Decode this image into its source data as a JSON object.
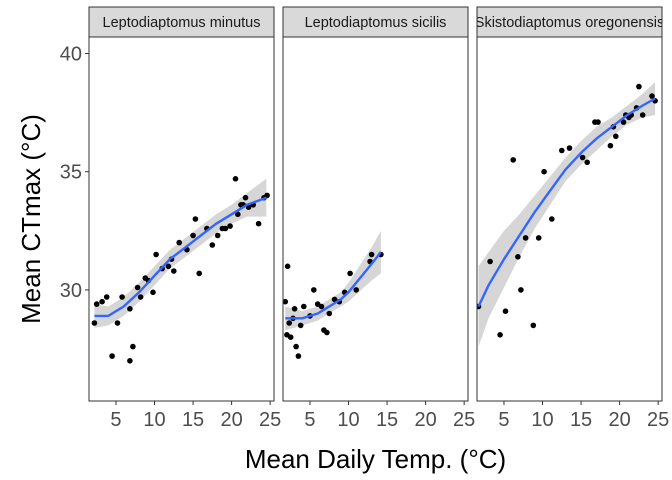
{
  "chart_data": {
    "type": "scatter",
    "facet_layout": "1 row, 3 columns, shared y axis",
    "xlabel": "Mean Daily Temp. (°C)",
    "ylabel": "Mean CTmax (°C)",
    "xlim": [
      1.5,
      25.5
    ],
    "ylim": [
      25.3,
      40.7
    ],
    "xticks": [
      5,
      10,
      15,
      20,
      25
    ],
    "xtick_labels": [
      "5",
      "10",
      "15",
      "20",
      "25"
    ],
    "yticks": [
      30,
      35,
      40
    ],
    "ytick_labels": [
      "30",
      "35",
      "40"
    ],
    "grid": false,
    "smoother": "loess fit with confidence band",
    "colors": {
      "points": "#000000",
      "fit_line": "#3366FF",
      "ribbon": "#999999",
      "strip_fill": "#D9D9D9",
      "panel_border": "#333333",
      "tick_text": "#4D4D4D"
    },
    "panels": [
      {
        "strip": "Leptodiaptomus minutus",
        "points": [
          [
            2.2,
            28.6
          ],
          [
            2.5,
            29.4
          ],
          [
            3.2,
            29.5
          ],
          [
            3.8,
            29.7
          ],
          [
            4.5,
            27.2
          ],
          [
            5.2,
            28.6
          ],
          [
            5.8,
            29.7
          ],
          [
            6.8,
            27.0
          ],
          [
            6.8,
            29.2
          ],
          [
            7.2,
            27.6
          ],
          [
            7.8,
            30.1
          ],
          [
            8.2,
            29.7
          ],
          [
            8.8,
            30.5
          ],
          [
            9.2,
            30.4
          ],
          [
            9.8,
            29.9
          ],
          [
            10.2,
            31.5
          ],
          [
            11.0,
            30.9
          ],
          [
            11.8,
            31.0
          ],
          [
            12.2,
            31.3
          ],
          [
            12.5,
            30.8
          ],
          [
            13.2,
            32.0
          ],
          [
            14.2,
            31.7
          ],
          [
            15.0,
            32.3
          ],
          [
            15.3,
            33.0
          ],
          [
            15.8,
            30.7
          ],
          [
            16.8,
            32.6
          ],
          [
            17.5,
            31.9
          ],
          [
            18.2,
            32.3
          ],
          [
            18.8,
            32.6
          ],
          [
            19.2,
            32.6
          ],
          [
            19.8,
            32.7
          ],
          [
            20.5,
            34.7
          ],
          [
            20.8,
            33.2
          ],
          [
            21.2,
            33.6
          ],
          [
            21.5,
            33.6
          ],
          [
            21.8,
            33.9
          ],
          [
            22.2,
            33.5
          ],
          [
            22.8,
            33.6
          ],
          [
            23.5,
            32.8
          ],
          [
            24.2,
            33.9
          ],
          [
            24.6,
            34.0
          ]
        ],
        "fit": [
          [
            2.2,
            28.9
          ],
          [
            4,
            28.9
          ],
          [
            6,
            29.3
          ],
          [
            8,
            29.9
          ],
          [
            10,
            30.6
          ],
          [
            12,
            31.3
          ],
          [
            14,
            31.8
          ],
          [
            16,
            32.3
          ],
          [
            18,
            32.8
          ],
          [
            20,
            33.2
          ],
          [
            22,
            33.6
          ],
          [
            24.5,
            33.9
          ]
        ],
        "fit_band": [
          [
            2.2,
            28.4,
            29.4
          ],
          [
            4,
            28.5,
            29.3
          ],
          [
            6,
            28.9,
            29.7
          ],
          [
            8,
            29.5,
            30.3
          ],
          [
            10,
            30.2,
            31.0
          ],
          [
            12,
            30.9,
            31.7
          ],
          [
            14,
            31.4,
            32.2
          ],
          [
            16,
            31.9,
            32.7
          ],
          [
            18,
            32.4,
            33.2
          ],
          [
            20,
            32.8,
            33.6
          ],
          [
            22,
            33.1,
            34.1
          ],
          [
            24.5,
            33.1,
            34.7
          ]
        ]
      },
      {
        "strip": "Leptodiaptomus sicilis",
        "points": [
          [
            1.8,
            29.5
          ],
          [
            2.0,
            28.1
          ],
          [
            2.1,
            31.0
          ],
          [
            2.3,
            28.6
          ],
          [
            2.5,
            28.0
          ],
          [
            2.8,
            28.8
          ],
          [
            3.0,
            29.2
          ],
          [
            3.2,
            27.6
          ],
          [
            3.5,
            27.2
          ],
          [
            3.8,
            28.5
          ],
          [
            4.2,
            29.3
          ],
          [
            5.0,
            28.9
          ],
          [
            5.5,
            30.0
          ],
          [
            6.0,
            29.4
          ],
          [
            6.5,
            29.3
          ],
          [
            6.8,
            28.3
          ],
          [
            7.2,
            28.2
          ],
          [
            7.5,
            29.0
          ],
          [
            8.2,
            29.6
          ],
          [
            8.8,
            29.5
          ],
          [
            9.5,
            29.9
          ],
          [
            10.2,
            30.7
          ],
          [
            11.0,
            30.0
          ],
          [
            12.8,
            31.2
          ],
          [
            13.0,
            31.5
          ],
          [
            14.2,
            31.5
          ]
        ],
        "fit": [
          [
            1.8,
            28.8
          ],
          [
            3,
            28.8
          ],
          [
            4,
            28.8
          ],
          [
            5,
            28.9
          ],
          [
            6,
            29.0
          ],
          [
            7,
            29.2
          ],
          [
            8,
            29.4
          ],
          [
            9,
            29.6
          ],
          [
            10,
            29.9
          ],
          [
            11,
            30.3
          ],
          [
            12,
            30.7
          ],
          [
            13,
            31.1
          ],
          [
            14.2,
            31.6
          ]
        ],
        "fit_band": [
          [
            1.8,
            28.3,
            29.3
          ],
          [
            3,
            28.4,
            29.2
          ],
          [
            4,
            28.5,
            29.1
          ],
          [
            5,
            28.6,
            29.2
          ],
          [
            6,
            28.7,
            29.3
          ],
          [
            7,
            28.9,
            29.5
          ],
          [
            8,
            29.1,
            29.7
          ],
          [
            9,
            29.3,
            29.9
          ],
          [
            10,
            29.5,
            30.3
          ],
          [
            11,
            29.8,
            30.8
          ],
          [
            12,
            30.1,
            31.3
          ],
          [
            13,
            30.4,
            31.8
          ],
          [
            14.2,
            30.7,
            32.5
          ]
        ]
      },
      {
        "strip": "Skistodiaptomus oregonensis",
        "points": [
          [
            1.7,
            29.3
          ],
          [
            3.2,
            31.2
          ],
          [
            4.5,
            28.1
          ],
          [
            5.2,
            29.1
          ],
          [
            6.2,
            35.5
          ],
          [
            6.8,
            31.4
          ],
          [
            7.2,
            30.0
          ],
          [
            7.8,
            32.2
          ],
          [
            8.8,
            28.5
          ],
          [
            9.5,
            32.2
          ],
          [
            10.2,
            35.0
          ],
          [
            11.2,
            33.0
          ],
          [
            12.5,
            35.9
          ],
          [
            13.5,
            36.0
          ],
          [
            15.2,
            35.6
          ],
          [
            15.8,
            35.4
          ],
          [
            16.8,
            37.1
          ],
          [
            17.2,
            37.1
          ],
          [
            18.8,
            36.1
          ],
          [
            19.2,
            36.9
          ],
          [
            19.5,
            36.5
          ],
          [
            20.5,
            37.1
          ],
          [
            20.8,
            37.4
          ],
          [
            21.2,
            37.3
          ],
          [
            21.5,
            37.4
          ],
          [
            22.2,
            37.7
          ],
          [
            22.5,
            38.6
          ],
          [
            23.0,
            37.4
          ],
          [
            24.2,
            38.2
          ],
          [
            24.6,
            38.0
          ]
        ],
        "fit": [
          [
            1.7,
            29.3
          ],
          [
            3,
            30.2
          ],
          [
            5,
            31.3
          ],
          [
            7,
            32.3
          ],
          [
            9,
            33.3
          ],
          [
            11,
            34.2
          ],
          [
            13,
            35.1
          ],
          [
            15,
            35.8
          ],
          [
            17,
            36.4
          ],
          [
            19,
            36.9
          ],
          [
            21,
            37.4
          ],
          [
            23,
            37.8
          ],
          [
            24.6,
            38.1
          ]
        ],
        "fit_band": [
          [
            1.7,
            27.6,
            31.0
          ],
          [
            3,
            28.8,
            31.6
          ],
          [
            5,
            30.1,
            32.5
          ],
          [
            7,
            31.4,
            33.2
          ],
          [
            9,
            32.6,
            34.0
          ],
          [
            11,
            33.6,
            34.8
          ],
          [
            13,
            34.6,
            35.6
          ],
          [
            15,
            35.3,
            36.3
          ],
          [
            17,
            35.9,
            36.9
          ],
          [
            19,
            36.5,
            37.3
          ],
          [
            21,
            37.0,
            37.8
          ],
          [
            23,
            37.3,
            38.3
          ],
          [
            24.6,
            37.4,
            38.8
          ]
        ]
      }
    ]
  }
}
